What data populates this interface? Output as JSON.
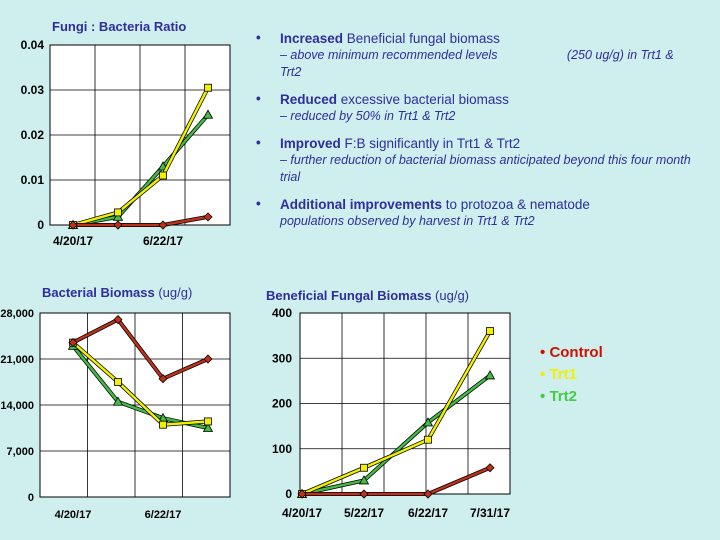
{
  "bullets": [
    {
      "head_bold": "Increased",
      "head_rest": " Beneficial fungal biomass",
      "sub": "– above minimum recommended levels                    (250 ug/g) in Trt1 & Trt2"
    },
    {
      "head_bold": "Reduced",
      "head_rest": " excessive bacterial biomass",
      "sub": "– reduced by 50% in Trt1 & Trt2"
    },
    {
      "head_bold": "Improved",
      "head_rest": " F:B significantly in Trt1 & Trt2",
      "sub": "– further reduction of bacterial biomass anticipated beyond this four month trial"
    },
    {
      "head_bold": "Additional improvements",
      "head_rest": " to protozoa & nematode",
      "sub": "populations observed by harvest in Trt1 & Trt2"
    }
  ],
  "legend": [
    {
      "label": "Control",
      "color": "#cc1100"
    },
    {
      "label": "Trt1",
      "color": "#f0f000"
    },
    {
      "label": "Trt2",
      "color": "#44cc44"
    }
  ],
  "colors": {
    "Control": "#c0311a",
    "Trt1": "#f0f000",
    "Trt2": "#44bb44"
  },
  "chart_data": [
    {
      "type": "line",
      "title": "Fungi : Bacteria Ratio",
      "unit": "",
      "ylim": [
        0,
        0.04
      ],
      "yticks": [
        "0",
        "0.01",
        "0.02",
        "0.03",
        "0.04"
      ],
      "xticks": [
        "4/20/17",
        "",
        "6/22/17",
        ""
      ],
      "grid": true,
      "series": [
        {
          "name": "Control",
          "values": [
            0.0,
            0.0,
            0.0,
            0.0018
          ]
        },
        {
          "name": "Trt1",
          "values": [
            0.0,
            0.0028,
            0.011,
            0.0305
          ]
        },
        {
          "name": "Trt2",
          "values": [
            0.0,
            0.0018,
            0.013,
            0.0245
          ]
        }
      ]
    },
    {
      "type": "line",
      "title": "Bacterial Biomass",
      "unit": " (ug/g)",
      "ylim": [
        0,
        28000
      ],
      "yticks": [
        "0",
        "7,000",
        "14,000",
        "21,000",
        "28,000"
      ],
      "xticks": [
        "4/20/17",
        "",
        "6/22/17",
        ""
      ],
      "grid": true,
      "series": [
        {
          "name": "Control",
          "values": [
            23500,
            27000,
            18000,
            21000
          ]
        },
        {
          "name": "Trt1",
          "values": [
            23500,
            17500,
            11000,
            11500
          ]
        },
        {
          "name": "Trt2",
          "values": [
            23000,
            14500,
            12000,
            10500
          ]
        }
      ]
    },
    {
      "type": "line",
      "title": "Beneficial Fungal Biomass",
      "unit": " (ug/g)",
      "ylim": [
        0,
        400
      ],
      "yticks": [
        "0",
        "100",
        "200",
        "300",
        "400"
      ],
      "xticks": [
        "4/20/17",
        "5/22/17",
        "6/22/17",
        "7/31/17"
      ],
      "grid": true,
      "series": [
        {
          "name": "Control",
          "values": [
            0,
            0,
            0,
            58
          ]
        },
        {
          "name": "Trt1",
          "values": [
            0,
            58,
            120,
            360
          ]
        },
        {
          "name": "Trt2",
          "values": [
            0,
            30,
            158,
            262
          ]
        }
      ]
    }
  ]
}
